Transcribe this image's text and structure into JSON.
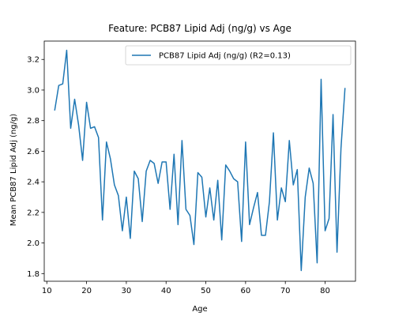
{
  "chart_data": {
    "type": "line",
    "title": "Feature: PCB87 Lipid Adj (ng/g) vs Age",
    "xlabel": "Age",
    "ylabel": "Mean PCB87 Lipid Adj (ng/g)",
    "xlim": [
      9.35,
      87.65
    ],
    "ylim": [
      1.75,
      3.32
    ],
    "xticks": [
      10,
      20,
      30,
      40,
      50,
      60,
      70,
      80
    ],
    "yticks": [
      1.8,
      2.0,
      2.2,
      2.4,
      2.6,
      2.8,
      3.0,
      3.2
    ],
    "grid": false,
    "legend_position": "top-right",
    "series": [
      {
        "name": "PCB87 Lipid Adj (ng/g) (R2=0.13)",
        "color": "#1f77b4",
        "x": [
          12,
          13,
          14,
          15,
          16,
          17,
          18,
          19,
          20,
          21,
          22,
          23,
          24,
          25,
          26,
          27,
          28,
          29,
          30,
          31,
          32,
          33,
          34,
          35,
          36,
          37,
          38,
          39,
          40,
          41,
          42,
          43,
          44,
          45,
          46,
          47,
          48,
          49,
          50,
          51,
          52,
          53,
          54,
          55,
          56,
          57,
          58,
          59,
          60,
          61,
          62,
          63,
          64,
          65,
          66,
          67,
          68,
          69,
          70,
          71,
          72,
          73,
          74,
          75,
          76,
          77,
          78,
          79,
          80,
          81,
          82,
          83,
          84,
          85
        ],
        "y": [
          2.87,
          3.03,
          3.04,
          3.26,
          2.75,
          2.94,
          2.77,
          2.54,
          2.92,
          2.75,
          2.76,
          2.69,
          2.15,
          2.66,
          2.55,
          2.38,
          2.31,
          2.08,
          2.3,
          2.03,
          2.47,
          2.42,
          2.14,
          2.47,
          2.54,
          2.52,
          2.39,
          2.53,
          2.53,
          2.22,
          2.58,
          2.12,
          2.67,
          2.22,
          2.18,
          1.99,
          2.46,
          2.43,
          2.17,
          2.36,
          2.15,
          2.41,
          2.02,
          2.51,
          2.47,
          2.42,
          2.4,
          2.01,
          2.66,
          2.12,
          2.23,
          2.33,
          2.05,
          2.05,
          2.27,
          2.72,
          2.15,
          2.36,
          2.27,
          2.67,
          2.38,
          2.48,
          1.82,
          2.3,
          2.49,
          2.39,
          1.87,
          3.07,
          2.08,
          2.16,
          2.84,
          1.94,
          2.62,
          3.01
        ]
      }
    ]
  }
}
